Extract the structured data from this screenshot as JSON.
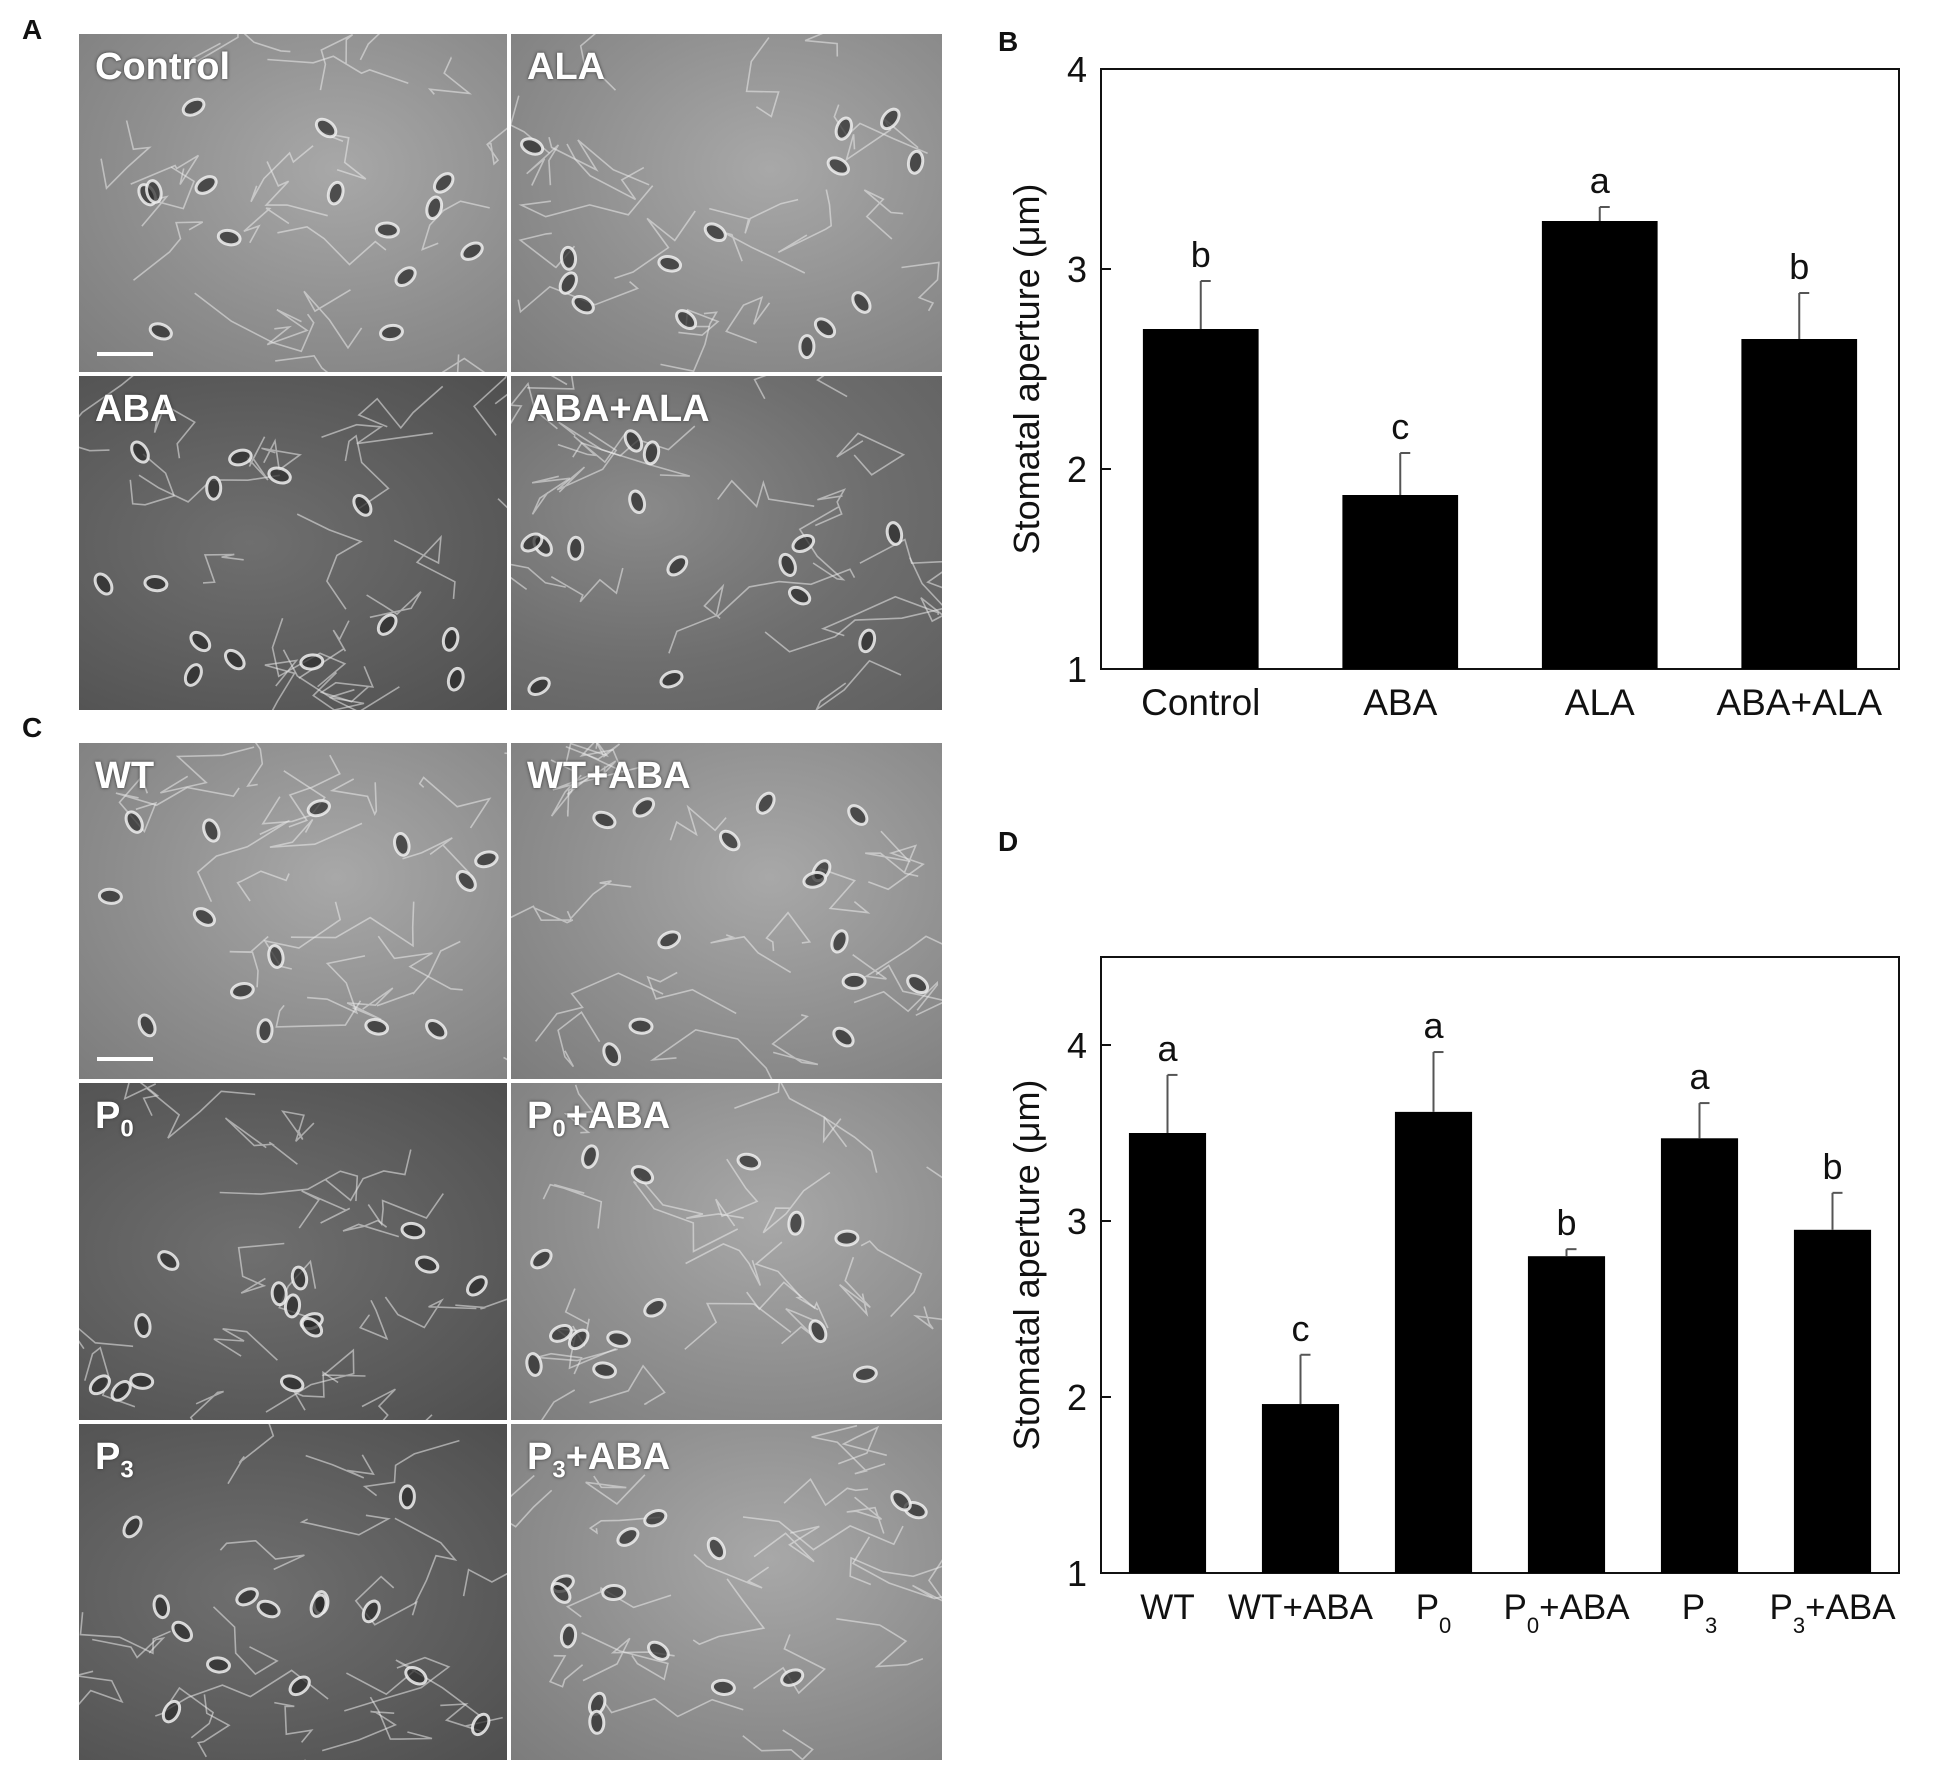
{
  "panel_letters": {
    "a": "A",
    "b": "B",
    "c": "C",
    "d": "D"
  },
  "panel_a": {
    "images": [
      {
        "label": "Control"
      },
      {
        "label": "ALA"
      },
      {
        "label": "ABA"
      },
      {
        "label": "ABA+ALA"
      }
    ]
  },
  "panel_c": {
    "images": [
      {
        "label": "WT"
      },
      {
        "label": "WT+ABA"
      },
      {
        "label_main": "P",
        "label_sub": "0",
        "label_suffix": ""
      },
      {
        "label_main": "P",
        "label_sub": "0",
        "label_suffix": "+ABA"
      },
      {
        "label_main": "P",
        "label_sub": "3",
        "label_suffix": ""
      },
      {
        "label_main": "P",
        "label_sub": "3",
        "label_suffix": "+ABA"
      }
    ]
  },
  "chart_data": [
    {
      "panel": "B",
      "type": "bar",
      "categories": [
        "Control",
        "ABA",
        "ALA",
        "ABA+ALA"
      ],
      "values": [
        2.7,
        1.87,
        3.24,
        2.65
      ],
      "errors": [
        0.24,
        0.21,
        0.07,
        0.23
      ],
      "significance": [
        "b",
        "c",
        "a",
        "b"
      ],
      "ylabel": "Stomatal aperture (μm)",
      "ylim": [
        1,
        4
      ],
      "yticks": [
        "1",
        "2",
        "3",
        "4"
      ],
      "bar_color": "#000000"
    },
    {
      "panel": "D",
      "type": "bar",
      "categories": [
        {
          "main": "WT",
          "sub": ""
        },
        {
          "main": "WT+ABA",
          "sub": ""
        },
        {
          "main": "P",
          "sub": "0"
        },
        {
          "main": "P",
          "sub": "0",
          "suffix": "+ABA"
        },
        {
          "main": "P",
          "sub": "3"
        },
        {
          "main": "P",
          "sub": "3",
          "suffix": "+ABA"
        }
      ],
      "values": [
        3.5,
        1.96,
        3.62,
        2.8,
        3.47,
        2.95
      ],
      "errors": [
        0.33,
        0.28,
        0.34,
        0.04,
        0.2,
        0.21
      ],
      "significance": [
        "a",
        "c",
        "a",
        "b",
        "a",
        "b"
      ],
      "ylabel": "Stomatal aperture (μm)",
      "ylim": [
        1,
        4.5
      ],
      "yticks": [
        "1",
        "2",
        "3",
        "4"
      ],
      "bar_color": "#000000"
    }
  ]
}
